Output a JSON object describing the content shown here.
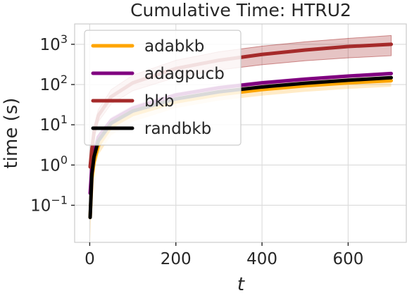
{
  "chart_data": {
    "type": "line",
    "title": "Cumulative Time: HTRU2",
    "xlabel": "t",
    "ylabel": "time (s)",
    "x_ticks": [
      "0",
      "200",
      "400",
      "600"
    ],
    "y_ticks": [
      {
        "base": "10",
        "exp": "3",
        "value": 1000
      },
      {
        "base": "10",
        "exp": "2",
        "value": 100
      },
      {
        "base": "10",
        "exp": "1",
        "value": 10
      },
      {
        "base": "10",
        "exp": "0",
        "value": 1
      },
      {
        "base": "10",
        "exp": "−1",
        "value": 0.1
      }
    ],
    "xlim": [
      -35,
      735
    ],
    "ylim": [
      0.012,
      3200
    ],
    "yscale": "log",
    "grid": true,
    "legend_position": "upper-left",
    "x": [
      1,
      5,
      10,
      20,
      50,
      100,
      200,
      300,
      400,
      500,
      600,
      700
    ],
    "series": [
      {
        "name": "adabkb",
        "color": "#FFA500",
        "values": [
          0.05,
          0.45,
          1.2,
          3.0,
          9.0,
          18,
          37,
          56,
          75,
          93,
          110,
          125
        ],
        "lower": [
          0.012,
          0.25,
          0.7,
          1.8,
          5.5,
          12,
          26,
          40,
          53,
          66,
          78,
          88
        ],
        "upper": [
          0.16,
          0.8,
          1.9,
          4.5,
          13,
          26,
          52,
          77,
          102,
          125,
          145,
          165
        ]
      },
      {
        "name": "adagpucb",
        "color": "#800080",
        "values": [
          0.2,
          0.9,
          2.0,
          5.0,
          13,
          26,
          55,
          83,
          110,
          136,
          162,
          188
        ],
        "lower": [
          0.15,
          0.7,
          1.6,
          4.2,
          11,
          22,
          48,
          73,
          97,
          121,
          145,
          168
        ],
        "upper": [
          0.28,
          1.1,
          2.5,
          6.0,
          15.5,
          31,
          63,
          94,
          124,
          152,
          180,
          210
        ]
      },
      {
        "name": "bkb",
        "color": "#A52A2A",
        "values": [
          0.9,
          2.5,
          6.5,
          17,
          50,
          110,
          250,
          400,
          560,
          720,
          880,
          1000
        ],
        "lower": [
          0.6,
          1.8,
          4.5,
          12,
          33,
          70,
          150,
          230,
          310,
          390,
          460,
          520
        ],
        "upper": [
          1.3,
          3.6,
          9.0,
          24,
          75,
          170,
          400,
          650,
          900,
          1150,
          1400,
          1650
        ]
      },
      {
        "name": "randbkb",
        "color": "#000000",
        "values": [
          0.05,
          0.6,
          1.6,
          4.0,
          11,
          22,
          44,
          66,
          87,
          108,
          128,
          148
        ],
        "lower": [
          0.04,
          0.5,
          1.4,
          3.6,
          10,
          20,
          40,
          60,
          80,
          99,
          118,
          137
        ],
        "upper": [
          0.065,
          0.72,
          1.85,
          4.5,
          12.3,
          24.5,
          48.5,
          72,
          95,
          117,
          139,
          160
        ]
      }
    ]
  }
}
